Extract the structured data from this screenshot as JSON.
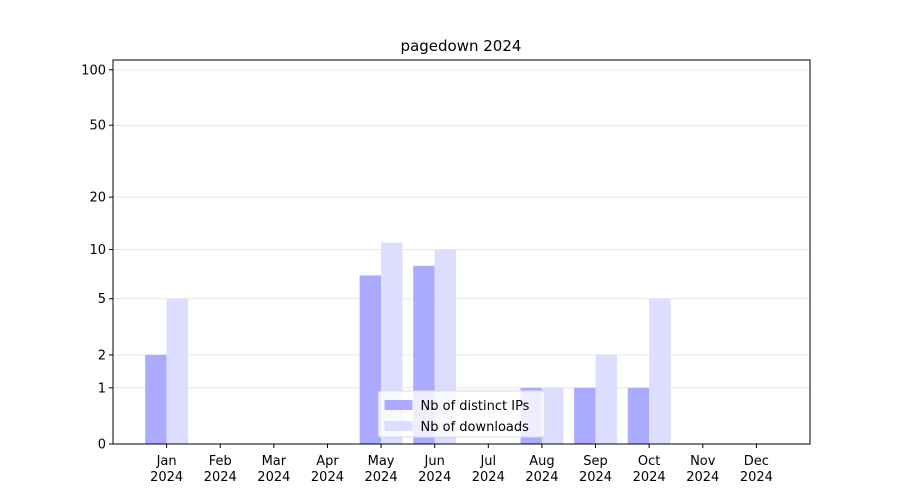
{
  "chart_data": {
    "type": "bar",
    "title": "pagedown 2024",
    "categories": [
      "Jan 2024",
      "Feb 2024",
      "Mar 2024",
      "Apr 2024",
      "May 2024",
      "Jun 2024",
      "Jul 2024",
      "Aug 2024",
      "Sep 2024",
      "Oct 2024",
      "Nov 2024",
      "Dec 2024"
    ],
    "series": [
      {
        "name": "Nb of distinct IPs",
        "color": "#aaaaff",
        "values": [
          2,
          0,
          0,
          0,
          7,
          8,
          0,
          1,
          1,
          1,
          0,
          0
        ]
      },
      {
        "name": "Nb of downloads",
        "color": "#ddddff",
        "values": [
          5,
          0,
          0,
          0,
          11,
          10,
          0,
          1,
          2,
          5,
          0,
          0
        ]
      }
    ],
    "y_scale": "symlog",
    "ylim": [
      0,
      113
    ],
    "yticks": [
      0,
      1,
      2,
      5,
      10,
      20,
      50,
      100
    ],
    "grid": true,
    "legend": "lower center"
  }
}
